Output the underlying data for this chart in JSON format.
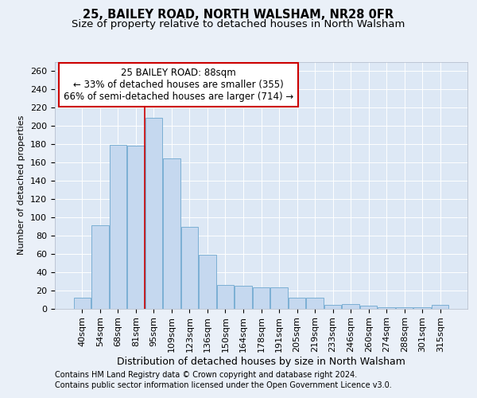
{
  "title": "25, BAILEY ROAD, NORTH WALSHAM, NR28 0FR",
  "subtitle": "Size of property relative to detached houses in North Walsham",
  "xlabel": "Distribution of detached houses by size in North Walsham",
  "ylabel": "Number of detached properties",
  "categories": [
    "40sqm",
    "54sqm",
    "68sqm",
    "81sqm",
    "95sqm",
    "109sqm",
    "123sqm",
    "136sqm",
    "150sqm",
    "164sqm",
    "178sqm",
    "191sqm",
    "205sqm",
    "219sqm",
    "233sqm",
    "246sqm",
    "260sqm",
    "274sqm",
    "288sqm",
    "301sqm",
    "315sqm"
  ],
  "values": [
    12,
    91,
    179,
    178,
    209,
    164,
    89,
    59,
    26,
    25,
    23,
    23,
    12,
    12,
    4,
    5,
    3,
    1,
    1,
    1,
    4
  ],
  "bar_color": "#c5d8ef",
  "bar_edge_color": "#7bafd4",
  "background_color": "#eaf0f8",
  "plot_bg_color": "#dde8f5",
  "vline_color": "#cc0000",
  "vline_x_idx": 3.5,
  "annotation_line1": "25 BAILEY ROAD: 88sqm",
  "annotation_line2": "← 33% of detached houses are smaller (355)",
  "annotation_line3": "66% of semi-detached houses are larger (714) →",
  "ylim": [
    0,
    270
  ],
  "yticks": [
    0,
    20,
    40,
    60,
    80,
    100,
    120,
    140,
    160,
    180,
    200,
    220,
    240,
    260
  ],
  "footer1": "Contains HM Land Registry data © Crown copyright and database right 2024.",
  "footer2": "Contains public sector information licensed under the Open Government Licence v3.0.",
  "title_fontsize": 10.5,
  "subtitle_fontsize": 9.5,
  "xlabel_fontsize": 9,
  "ylabel_fontsize": 8,
  "tick_fontsize": 8,
  "annot_fontsize": 8.5,
  "footer_fontsize": 7
}
